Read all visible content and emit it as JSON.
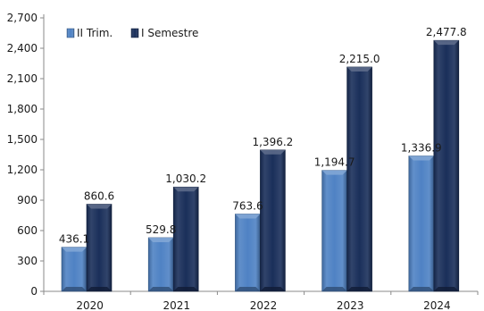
{
  "chart_data": {
    "type": "bar",
    "title": "",
    "xlabel": "",
    "ylabel": "",
    "categories": [
      "2020",
      "2021",
      "2022",
      "2023",
      "2024"
    ],
    "series": [
      {
        "name": "II Trim.",
        "color": "#4f82c4",
        "values": [
          436.1,
          529.8,
          763.6,
          1194.7,
          1336.9
        ],
        "labels": [
          "436.1",
          "529.8",
          "763.6",
          "1,194.7",
          "1,336.9"
        ]
      },
      {
        "name": "I Semestre",
        "color": "#1a2f5a",
        "values": [
          860.6,
          1030.2,
          1396.2,
          2215.0,
          2477.8
        ],
        "labels": [
          "860.6",
          "1,030.2",
          "1,396.2",
          "2,215.0",
          "2,477.8"
        ]
      }
    ],
    "ylim": [
      0,
      2700
    ],
    "yticks": [
      0,
      300,
      600,
      900,
      1200,
      1500,
      1800,
      2100,
      2400,
      2700
    ],
    "ytick_labels": [
      "0",
      "300",
      "600",
      "900",
      "1,200",
      "1,500",
      "1,800",
      "2,100",
      "2,400",
      "2,700"
    ],
    "grid": false,
    "legend": "top-left"
  }
}
